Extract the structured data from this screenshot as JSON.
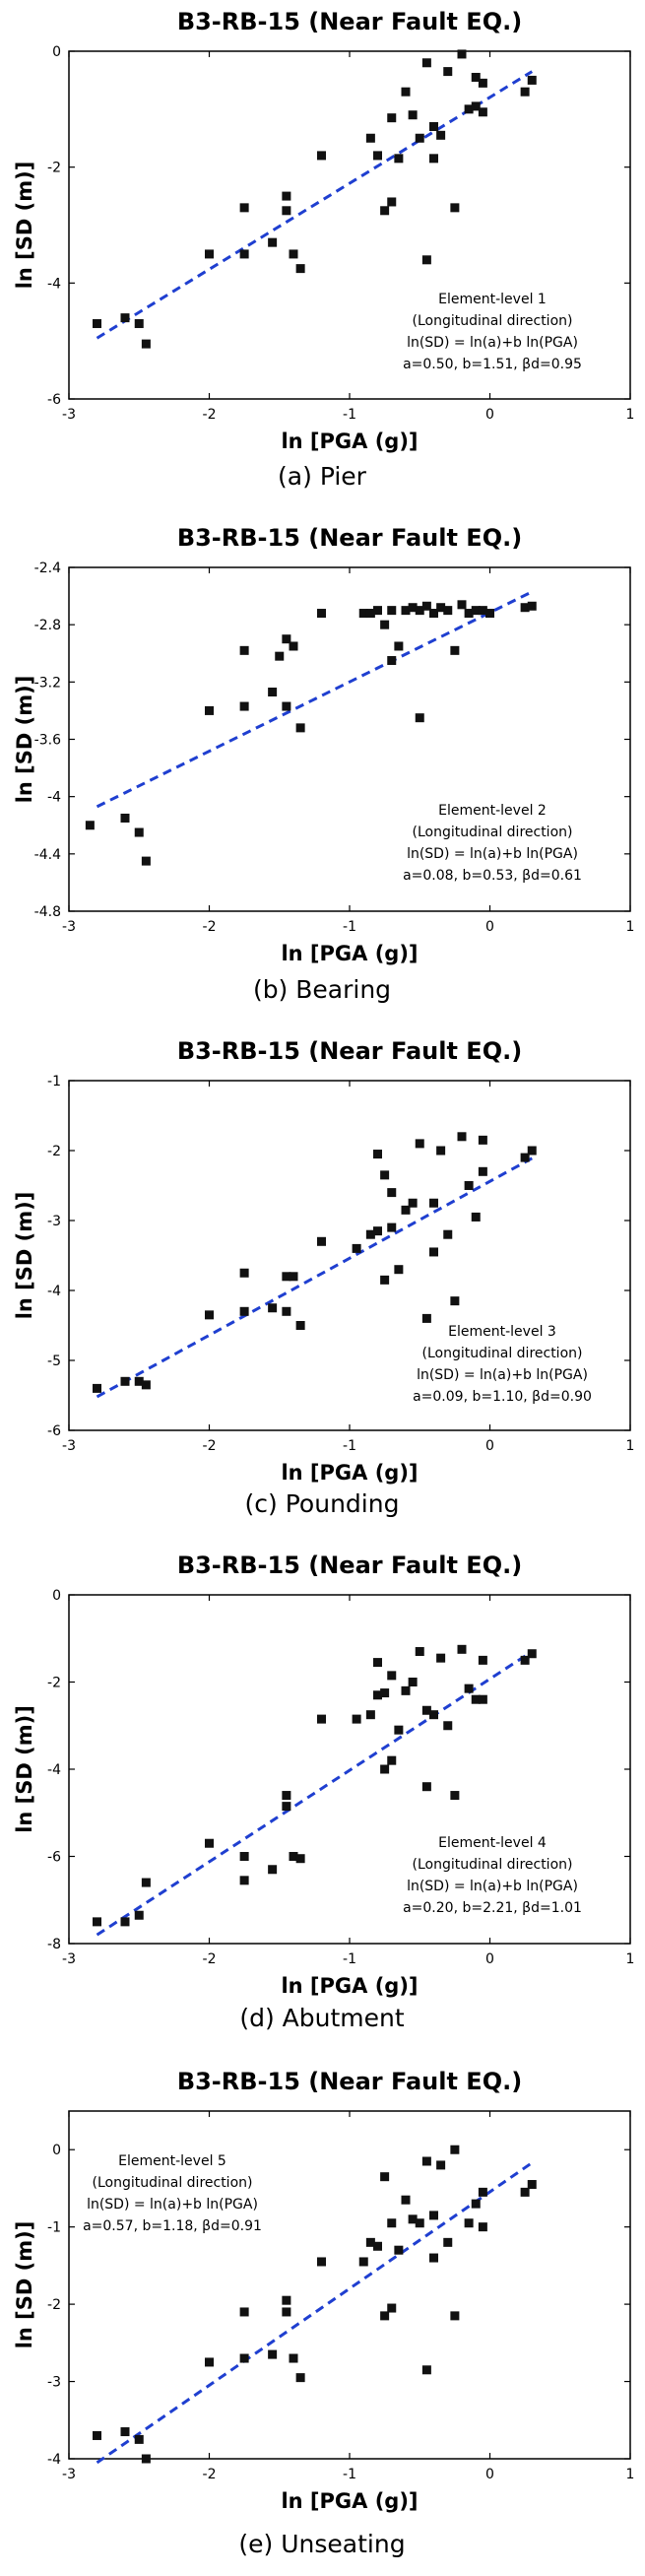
{
  "colors": {
    "marker": "#111111",
    "fit_line": "#1f3fd0",
    "axis": "#000000"
  },
  "panels": [
    {
      "caption": "(a) Pier",
      "info": [
        "Element-level 1",
        "(Longitudinal direction)",
        "ln(SD) = ln(a)+b ln(PGA)",
        "a=0.50, b=1.51, βd=0.95"
      ]
    },
    {
      "caption": "(b) Bearing",
      "info": [
        "Element-level 2",
        "(Longitudinal direction)",
        "ln(SD) = ln(a)+b ln(PGA)",
        "a=0.08, b=0.53, βd=0.61"
      ]
    },
    {
      "caption": "(c) Pounding",
      "info": [
        "Element-level 3",
        "(Longitudinal direction)",
        "ln(SD) = ln(a)+b ln(PGA)",
        "a=0.09, b=1.10, βd=0.90"
      ]
    },
    {
      "caption": "(d) Abutment",
      "info": [
        "Element-level 4",
        "(Longitudinal direction)",
        "ln(SD) = ln(a)+b ln(PGA)",
        "a=0.20, b=2.21, βd=1.01"
      ]
    },
    {
      "caption": "(e) Unseating",
      "info": [
        "Element-level 5",
        "(Longitudinal direction)",
        "ln(SD) = ln(a)+b ln(PGA)",
        "a=0.57, b=1.18, βd=0.91"
      ]
    }
  ],
  "chart_data": [
    {
      "type": "scatter",
      "title": "B3-RB-15 (Near Fault EQ.)",
      "xlabel": "ln [PGA (g)]",
      "ylabel": "ln [SD (m)]",
      "xlim": [
        -3,
        1
      ],
      "ylim": [
        -6,
        0
      ],
      "xticks": [
        -3,
        -2,
        -1,
        0,
        1
      ],
      "yticks": [
        -6,
        -4,
        -2,
        0
      ],
      "x": [
        -2.8,
        -2.6,
        -2.5,
        -2.45,
        -2.0,
        -1.75,
        -1.75,
        -1.55,
        -1.45,
        -1.45,
        -1.4,
        -1.35,
        -1.2,
        -0.85,
        -0.8,
        -0.75,
        -0.7,
        -0.7,
        -0.65,
        -0.6,
        -0.55,
        -0.5,
        -0.45,
        -0.45,
        -0.4,
        -0.4,
        -0.35,
        -0.3,
        -0.25,
        -0.2,
        -0.15,
        -0.1,
        -0.1,
        -0.05,
        -0.05,
        0.25,
        0.3
      ],
      "y": [
        -4.7,
        -4.6,
        -4.7,
        -5.05,
        -3.5,
        -2.7,
        -3.5,
        -3.3,
        -2.5,
        -2.75,
        -3.5,
        -3.75,
        -1.8,
        -1.5,
        -1.8,
        -2.75,
        -1.15,
        -2.6,
        -1.85,
        -0.7,
        -1.1,
        -1.5,
        -0.2,
        -3.6,
        -1.3,
        -1.85,
        -1.45,
        -0.35,
        -2.7,
        -0.05,
        -1.0,
        -0.95,
        -0.45,
        -1.05,
        -0.55,
        -0.7,
        -0.5
      ],
      "fit": {
        "x": [
          -2.8,
          0.3
        ],
        "y": [
          -4.95,
          -0.35
        ]
      }
    },
    {
      "type": "scatter",
      "title": "B3-RB-15 (Near Fault EQ.)",
      "xlabel": "ln [PGA (g)]",
      "ylabel": "ln [SD (m)]",
      "xlim": [
        -3,
        1
      ],
      "ylim": [
        -4.8,
        -2.4
      ],
      "xticks": [
        -3,
        -2,
        -1,
        0,
        1
      ],
      "yticks": [
        -4.8,
        -4.4,
        -4.0,
        -3.6,
        -3.2,
        -2.8,
        -2.4
      ],
      "ytick_labels": [
        "-4.8",
        "-4.4",
        "-4",
        "-3.6",
        "-3.2",
        "-2.8",
        "-2.4"
      ],
      "x": [
        -2.85,
        -2.6,
        -2.5,
        -2.45,
        -2.0,
        -1.75,
        -1.75,
        -1.55,
        -1.5,
        -1.45,
        -1.45,
        -1.4,
        -1.35,
        -1.2,
        -0.9,
        -0.85,
        -0.8,
        -0.75,
        -0.7,
        -0.7,
        -0.65,
        -0.6,
        -0.55,
        -0.5,
        -0.5,
        -0.45,
        -0.4,
        -0.35,
        -0.3,
        -0.25,
        -0.2,
        -0.15,
        -0.1,
        -0.05,
        0.0,
        0.25,
        0.3
      ],
      "y": [
        -4.2,
        -4.15,
        -4.25,
        -4.45,
        -3.4,
        -2.98,
        -3.37,
        -3.27,
        -3.02,
        -2.9,
        -3.37,
        -2.95,
        -3.52,
        -2.72,
        -2.72,
        -2.72,
        -2.7,
        -2.8,
        -3.05,
        -2.7,
        -2.95,
        -2.7,
        -2.68,
        -2.7,
        -3.45,
        -2.67,
        -2.72,
        -2.68,
        -2.7,
        -2.98,
        -2.66,
        -2.72,
        -2.7,
        -2.7,
        -2.72,
        -2.68,
        -2.67
      ],
      "fit": {
        "x": [
          -2.8,
          0.3
        ],
        "y": [
          -4.07,
          -2.57
        ]
      }
    },
    {
      "type": "scatter",
      "title": "B3-RB-15 (Near Fault EQ.)",
      "xlabel": "ln [PGA (g)]",
      "ylabel": "ln [SD (m)]",
      "xlim": [
        -3,
        1
      ],
      "ylim": [
        -6,
        -1
      ],
      "xticks": [
        -3,
        -2,
        -1,
        0,
        1
      ],
      "yticks": [
        -6,
        -5,
        -4,
        -3,
        -2,
        -1
      ],
      "x": [
        -2.8,
        -2.6,
        -2.5,
        -2.45,
        -2.0,
        -1.75,
        -1.75,
        -1.55,
        -1.45,
        -1.45,
        -1.4,
        -1.35,
        -1.2,
        -0.95,
        -0.85,
        -0.8,
        -0.8,
        -0.75,
        -0.75,
        -0.7,
        -0.7,
        -0.65,
        -0.6,
        -0.55,
        -0.5,
        -0.45,
        -0.4,
        -0.4,
        -0.35,
        -0.3,
        -0.25,
        -0.2,
        -0.15,
        -0.1,
        -0.05,
        -0.05,
        0.25,
        0.3
      ],
      "y": [
        -5.4,
        -5.3,
        -5.3,
        -5.35,
        -4.35,
        -3.75,
        -4.3,
        -4.25,
        -3.8,
        -4.3,
        -3.8,
        -4.5,
        -3.3,
        -3.4,
        -3.2,
        -2.05,
        -3.15,
        -3.85,
        -2.35,
        -3.1,
        -2.6,
        -3.7,
        -2.85,
        -2.75,
        -1.9,
        -4.4,
        -2.75,
        -3.45,
        -2.0,
        -3.2,
        -4.15,
        -1.8,
        -2.5,
        -2.95,
        -2.3,
        -1.85,
        -2.1,
        -2.0
      ],
      "fit": {
        "x": [
          -2.8,
          0.3
        ],
        "y": [
          -5.52,
          -2.11
        ]
      }
    },
    {
      "type": "scatter",
      "title": "B3-RB-15 (Near Fault EQ.)",
      "xlabel": "ln [PGA (g)]",
      "ylabel": "ln [SD (m)]",
      "xlim": [
        -3,
        1
      ],
      "ylim": [
        -8,
        0
      ],
      "xticks": [
        -3,
        -2,
        -1,
        0,
        1
      ],
      "yticks": [
        -8,
        -6,
        -4,
        -2,
        0
      ],
      "x": [
        -2.8,
        -2.6,
        -2.5,
        -2.45,
        -2.0,
        -1.75,
        -1.75,
        -1.55,
        -1.45,
        -1.45,
        -1.4,
        -1.35,
        -1.2,
        -0.95,
        -0.85,
        -0.8,
        -0.8,
        -0.75,
        -0.75,
        -0.7,
        -0.7,
        -0.65,
        -0.6,
        -0.55,
        -0.5,
        -0.45,
        -0.45,
        -0.4,
        -0.35,
        -0.3,
        -0.25,
        -0.2,
        -0.15,
        -0.1,
        -0.05,
        -0.05,
        0.25,
        0.3
      ],
      "y": [
        -7.5,
        -7.5,
        -7.35,
        -6.6,
        -5.7,
        -6.0,
        -6.55,
        -6.3,
        -4.85,
        -4.6,
        -6.0,
        -6.05,
        -2.85,
        -2.85,
        -2.75,
        -2.3,
        -1.55,
        -4.0,
        -2.25,
        -3.8,
        -1.85,
        -3.1,
        -2.2,
        -2.0,
        -1.3,
        -2.65,
        -4.4,
        -2.75,
        -1.45,
        -3.0,
        -4.6,
        -1.25,
        -2.15,
        -2.4,
        -1.5,
        -2.4,
        -1.5,
        -1.35
      ],
      "fit": {
        "x": [
          -2.8,
          0.3
        ],
        "y": [
          -7.8,
          -1.3
        ]
      }
    },
    {
      "type": "scatter",
      "title": "B3-RB-15 (Near Fault EQ.)",
      "xlabel": "ln [PGA (g)]",
      "ylabel": "ln [SD (m)]",
      "xlim": [
        -3,
        1
      ],
      "ylim": [
        -4,
        0.5
      ],
      "xticks": [
        -3,
        -2,
        -1,
        0,
        1
      ],
      "yticks": [
        -4,
        -3,
        -2,
        -1,
        0
      ],
      "x": [
        -2.8,
        -2.6,
        -2.5,
        -2.45,
        -2.0,
        -1.75,
        -1.75,
        -1.55,
        -1.45,
        -1.45,
        -1.4,
        -1.35,
        -1.2,
        -0.9,
        -0.85,
        -0.8,
        -0.75,
        -0.75,
        -0.7,
        -0.7,
        -0.65,
        -0.6,
        -0.55,
        -0.5,
        -0.45,
        -0.45,
        -0.4,
        -0.4,
        -0.35,
        -0.3,
        -0.25,
        -0.25,
        -0.15,
        -0.1,
        -0.05,
        -0.05,
        0.25,
        0.3
      ],
      "y": [
        -3.7,
        -3.65,
        -3.75,
        -4.0,
        -2.75,
        -2.1,
        -2.7,
        -2.65,
        -1.95,
        -2.1,
        -2.7,
        -2.95,
        -1.45,
        -1.45,
        -1.2,
        -1.25,
        -0.35,
        -2.15,
        -0.95,
        -2.05,
        -1.3,
        -0.65,
        -0.9,
        -0.95,
        -0.15,
        -2.85,
        -0.85,
        -1.4,
        -0.2,
        -1.2,
        -2.15,
        0.0,
        -0.95,
        -0.7,
        -1.0,
        -0.55,
        -0.55,
        -0.45
      ],
      "fit": {
        "x": [
          -2.8,
          0.3
        ],
        "y": [
          -4.05,
          -0.17
        ]
      }
    }
  ]
}
